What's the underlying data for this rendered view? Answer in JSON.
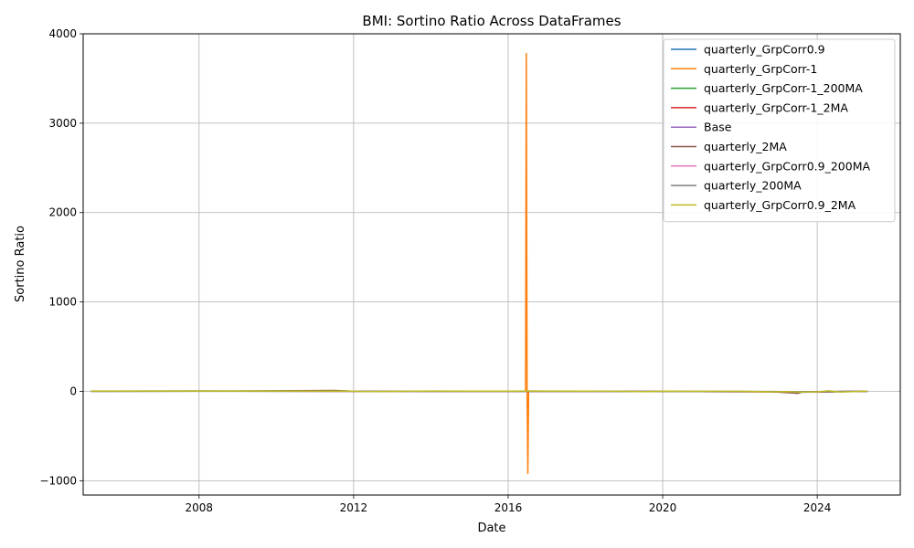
{
  "chart_data": {
    "type": "line",
    "title": "BMI: Sortino Ratio Across DataFrames",
    "xlabel": "Date",
    "ylabel": "Sortino Ratio",
    "xlim": [
      2005.0,
      2026.15
    ],
    "ylim": [
      -1160,
      4000
    ],
    "xticks": [
      2008,
      2012,
      2016,
      2020,
      2024
    ],
    "xtick_labels": [
      "2008",
      "2012",
      "2016",
      "2020",
      "2024"
    ],
    "yticks": [
      -1000,
      0,
      1000,
      2000,
      3000,
      4000
    ],
    "ytick_labels": [
      "−1000",
      "0",
      "1000",
      "2000",
      "3000",
      "4000"
    ],
    "grid": true,
    "legend_position": "top-right",
    "series": [
      {
        "name": "quarterly_GrpCorr0.9",
        "color": "#1f77b4",
        "x": [
          2005.2,
          2008.0,
          2012.0,
          2016.0,
          2016.5,
          2019.5,
          2022.8,
          2023.5,
          2024.3,
          2025.3
        ],
        "y": [
          2,
          3,
          2,
          1,
          2,
          -2,
          -4,
          -10,
          -6,
          1
        ]
      },
      {
        "name": "quarterly_GrpCorr-1",
        "color": "#ff7f0e",
        "x": [
          2005.2,
          2008.0,
          2012.0,
          2016.0,
          2016.45,
          2016.47,
          2016.49,
          2016.51,
          2016.53,
          2017.0,
          2019.5,
          2022.8,
          2023.5,
          2024.3,
          2025.3
        ],
        "y": [
          2,
          3,
          2,
          1,
          2,
          3780,
          5,
          -920,
          4,
          2,
          -2,
          -5,
          -8,
          -6,
          1
        ]
      },
      {
        "name": "quarterly_GrpCorr-1_200MA",
        "color": "#2ca02c",
        "x": [
          2005.2,
          2008.0,
          2012.0,
          2016.0,
          2019.5,
          2022.8,
          2023.5,
          2025.3
        ],
        "y": [
          1,
          2,
          1,
          1,
          -1,
          -3,
          -6,
          1
        ]
      },
      {
        "name": "quarterly_GrpCorr-1_2MA",
        "color": "#d62728",
        "x": [
          2005.2,
          2008.0,
          2012.0,
          2016.0,
          2019.5,
          2022.8,
          2023.5,
          2025.3
        ],
        "y": [
          2,
          2,
          1,
          1,
          -2,
          -4,
          -8,
          1
        ]
      },
      {
        "name": "Base",
        "color": "#9467bd",
        "x": [
          2005.2,
          2008.0,
          2012.0,
          2016.0,
          2019.5,
          2022.8,
          2023.5,
          2025.3
        ],
        "y": [
          1,
          2,
          1,
          1,
          -2,
          -3,
          -7,
          1
        ]
      },
      {
        "name": "quarterly_2MA",
        "color": "#8c564b",
        "x": [
          2005.2,
          2008.0,
          2011.5,
          2012.0,
          2016.0,
          2019.5,
          2022.8,
          2023.5,
          2023.6,
          2025.3
        ],
        "y": [
          2,
          2,
          10,
          1,
          1,
          -2,
          -4,
          -22,
          -8,
          1
        ]
      },
      {
        "name": "quarterly_GrpCorr0.9_200MA",
        "color": "#e377c2",
        "x": [
          2005.2,
          2008.0,
          2012.0,
          2016.0,
          2019.5,
          2022.8,
          2023.5,
          2025.3
        ],
        "y": [
          1,
          2,
          1,
          1,
          -1,
          -3,
          -5,
          1
        ]
      },
      {
        "name": "quarterly_200MA",
        "color": "#7f7f7f",
        "x": [
          2005.2,
          2008.0,
          2012.0,
          2016.0,
          2019.5,
          2022.8,
          2023.5,
          2025.3
        ],
        "y": [
          1,
          1,
          1,
          1,
          -1,
          -2,
          -5,
          1
        ]
      },
      {
        "name": "quarterly_GrpCorr0.9_2MA",
        "color": "#bcbd22",
        "x": [
          2005.2,
          2006.5,
          2008.0,
          2010.0,
          2012.0,
          2012.3,
          2014.0,
          2016.0,
          2016.5,
          2018.0,
          2019.0,
          2019.5,
          2020.0,
          2022.0,
          2022.8,
          2023.2,
          2023.6,
          2024.0,
          2024.3,
          2024.6,
          2025.3
        ],
        "y": [
          3,
          4,
          3,
          4,
          2,
          -3,
          3,
          2,
          3,
          2,
          1,
          -4,
          2,
          1,
          -6,
          -3,
          -9,
          -5,
          6,
          -8,
          2
        ]
      }
    ]
  }
}
